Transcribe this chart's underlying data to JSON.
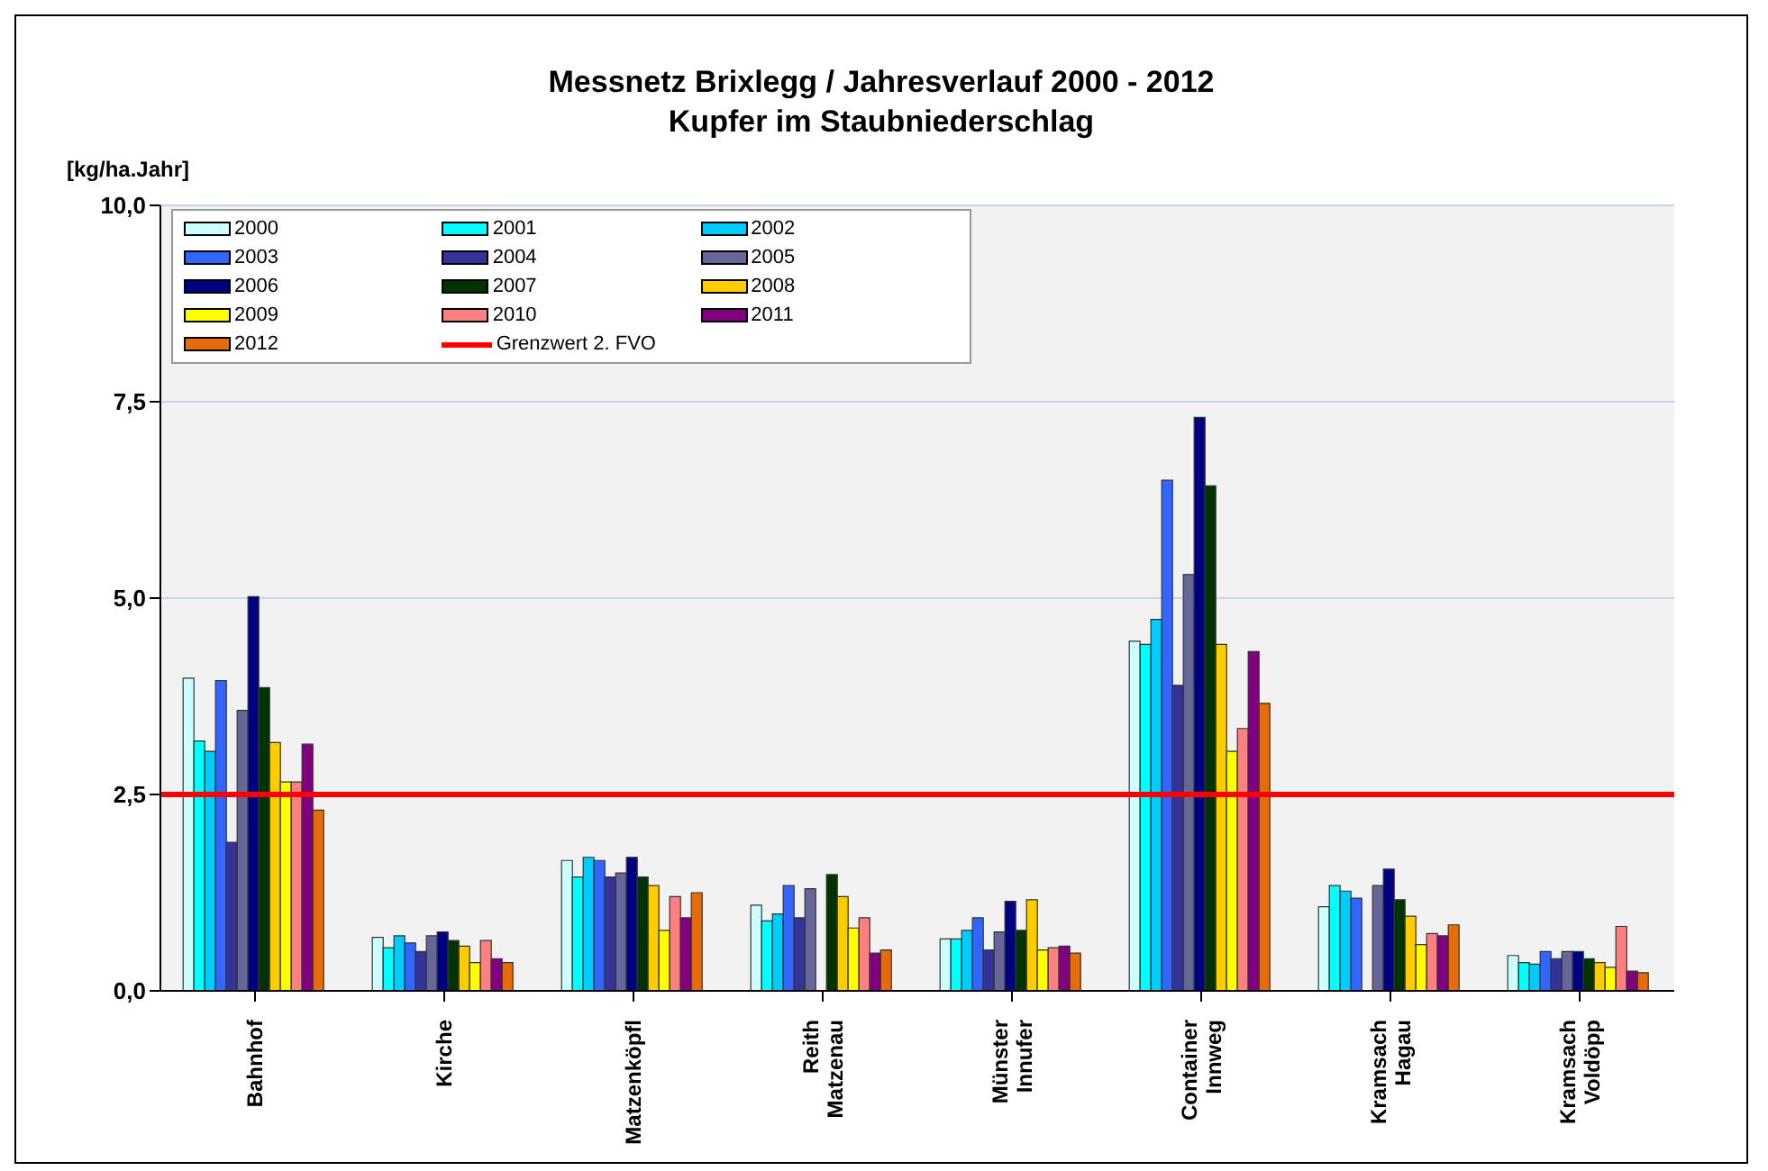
{
  "chart_data": {
    "type": "bar",
    "title": "Messnetz Brixlegg / Jahresverlauf 2000 - 2012",
    "subtitle": "Kupfer im Staubniederschlag",
    "ylabel": "[kg/ha.Jahr]",
    "categories": [
      "Bahnhof",
      "Kirche",
      "Matzenköpfl",
      "Reith Matzenau",
      "Münster Innufer",
      "Container Innweg",
      "Kramsach Hagau",
      "Kramsach Voldöpp"
    ],
    "series": [
      {
        "name": "2000",
        "color": "#ccffff",
        "values": [
          3.98,
          0.68,
          1.66,
          1.09,
          0.66,
          4.45,
          1.07,
          0.45
        ]
      },
      {
        "name": "2001",
        "color": "#00ffff",
        "values": [
          3.18,
          0.55,
          1.45,
          0.89,
          0.66,
          4.41,
          1.34,
          0.36
        ]
      },
      {
        "name": "2002",
        "color": "#00ccff",
        "values": [
          3.05,
          0.7,
          1.7,
          0.98,
          0.77,
          4.73,
          1.27,
          0.34
        ]
      },
      {
        "name": "2003",
        "color": "#3366ff",
        "values": [
          3.95,
          0.61,
          1.66,
          1.34,
          0.93,
          6.5,
          1.18,
          0.5
        ]
      },
      {
        "name": "2004",
        "color": "#333399",
        "values": [
          1.89,
          0.5,
          1.45,
          0.93,
          0.52,
          3.89,
          null,
          0.41
        ]
      },
      {
        "name": "2005",
        "color": "#666699",
        "values": [
          3.57,
          0.7,
          1.5,
          1.3,
          0.75,
          5.3,
          1.34,
          0.5
        ]
      },
      {
        "name": "2006",
        "color": "#000080",
        "values": [
          5.02,
          0.75,
          1.7,
          null,
          1.14,
          7.3,
          1.55,
          0.5
        ]
      },
      {
        "name": "2007",
        "color": "#003300",
        "values": [
          3.86,
          0.64,
          1.45,
          1.48,
          0.77,
          6.43,
          1.16,
          0.41
        ]
      },
      {
        "name": "2008",
        "color": "#ffcc00",
        "values": [
          3.16,
          0.57,
          1.34,
          1.2,
          1.16,
          4.41,
          0.95,
          0.36
        ]
      },
      {
        "name": "2009",
        "color": "#ffff00",
        "values": [
          2.66,
          0.36,
          0.77,
          0.8,
          0.52,
          3.05,
          0.59,
          0.3
        ]
      },
      {
        "name": "2010",
        "color": "#ff8080",
        "values": [
          2.66,
          0.64,
          1.2,
          0.93,
          0.55,
          3.34,
          0.73,
          0.82
        ]
      },
      {
        "name": "2011",
        "color": "#800080",
        "values": [
          3.14,
          0.41,
          0.93,
          0.48,
          0.57,
          4.32,
          0.7,
          0.25
        ]
      },
      {
        "name": "2012",
        "color": "#e46c0a",
        "values": [
          2.3,
          0.36,
          1.25,
          0.52,
          0.48,
          3.66,
          0.84,
          0.23
        ]
      }
    ],
    "ref_lines": [
      {
        "axis": "y",
        "value": 2.5,
        "label": "Grenzwert 2. FVO",
        "color": "#ff0000"
      }
    ],
    "ylim": [
      0,
      10
    ],
    "yticks": [
      {
        "value": 0,
        "label": "0,0"
      },
      {
        "value": 2.5,
        "label": "2,5"
      },
      {
        "value": 5,
        "label": "5,0"
      },
      {
        "value": 7.5,
        "label": "7,5"
      },
      {
        "value": 10,
        "label": "10,0"
      }
    ],
    "grid": "y",
    "legend": "top left"
  }
}
